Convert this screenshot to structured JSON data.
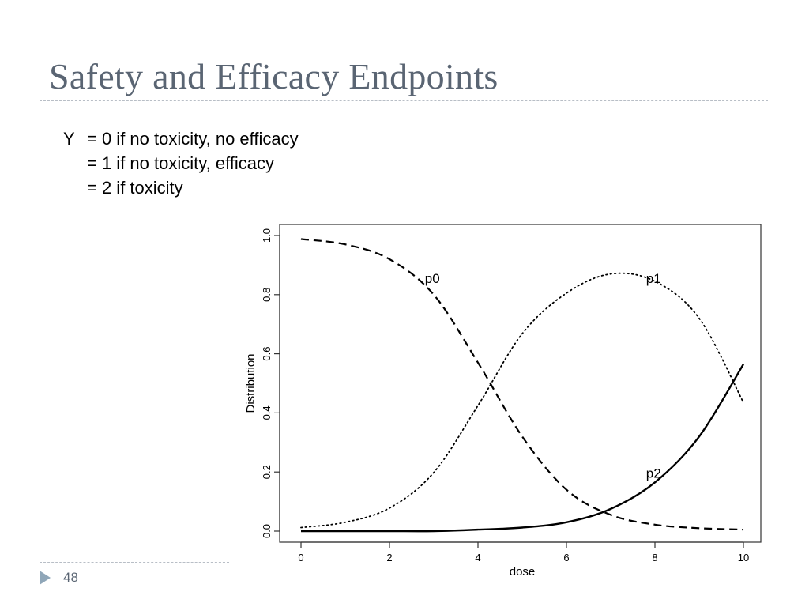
{
  "slide": {
    "title": "Safety and Efficacy Endpoints",
    "page_number": "48",
    "definitions": {
      "var": "Y",
      "line1": "= 0 if no toxicity, no efficacy",
      "line2": "= 1 if no toxicity, efficacy",
      "line3": "= 2 if toxicity"
    },
    "colors": {
      "title": "#5a6573",
      "accent": "#8fa6b8",
      "rule": "#b8bec6"
    },
    "icons": {
      "bullet": "triangle-right-icon"
    }
  },
  "chart_data": {
    "type": "line",
    "title": "",
    "xlabel": "dose",
    "ylabel": "Distribution",
    "xlim": [
      0,
      10
    ],
    "ylim": [
      0,
      1
    ],
    "xticks": [
      "0",
      "2",
      "4",
      "6",
      "8",
      "10"
    ],
    "yticks": [
      "0.0",
      "0.2",
      "0.4",
      "0.6",
      "0.8",
      "1.0"
    ],
    "x": [
      0,
      1,
      2,
      3,
      4,
      5,
      6,
      7,
      8,
      9,
      10
    ],
    "series": [
      {
        "name": "p0",
        "style": "dashed",
        "label_at": [
          2.8,
          0.84
        ],
        "values": [
          0.988,
          0.97,
          0.92,
          0.8,
          0.57,
          0.32,
          0.14,
          0.055,
          0.022,
          0.01,
          0.005
        ]
      },
      {
        "name": "p1",
        "style": "dotted",
        "label_at": [
          7.8,
          0.84
        ],
        "values": [
          0.012,
          0.03,
          0.078,
          0.198,
          0.425,
          0.668,
          0.805,
          0.87,
          0.845,
          0.72,
          0.435
        ]
      },
      {
        "name": "p2",
        "style": "solid",
        "label_at": [
          7.8,
          0.18
        ],
        "values": [
          0.0,
          0.0,
          0.0,
          0.0,
          0.005,
          0.012,
          0.03,
          0.075,
          0.165,
          0.32,
          0.565
        ]
      }
    ]
  }
}
